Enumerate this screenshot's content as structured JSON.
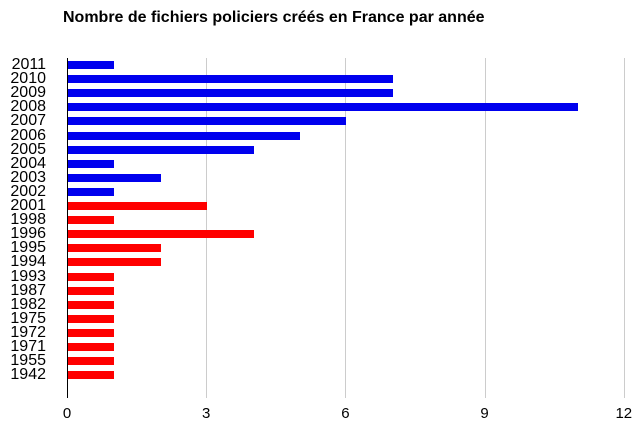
{
  "chart_data": {
    "type": "bar",
    "orientation": "horizontal",
    "title": "Nombre de fichiers policiers créés en France par année",
    "categories": [
      "2011",
      "2010",
      "2009",
      "2008",
      "2007",
      "2006",
      "2005",
      "2004",
      "2003",
      "2002",
      "2001",
      "1998",
      "1996",
      "1995",
      "1994",
      "1993",
      "1987",
      "1982",
      "1975",
      "1972",
      "1971",
      "1955",
      "1942"
    ],
    "values": [
      1,
      7,
      7,
      11,
      6,
      5,
      4,
      1,
      2,
      1,
      3,
      1,
      4,
      2,
      2,
      1,
      1,
      1,
      1,
      1,
      1,
      1,
      1
    ],
    "bar_colors": [
      "#0000ee",
      "#0000ee",
      "#0000ee",
      "#0000ee",
      "#0000ee",
      "#0000ee",
      "#0000ee",
      "#0000ee",
      "#0000ee",
      "#0000ee",
      "#ff0000",
      "#ff0000",
      "#ff0000",
      "#ff0000",
      "#ff0000",
      "#ff0000",
      "#ff0000",
      "#ff0000",
      "#ff0000",
      "#ff0000",
      "#ff0000",
      "#ff0000",
      "#ff0000"
    ],
    "xlabel": "",
    "ylabel": "",
    "xlim": [
      0,
      12
    ],
    "xticks": [
      "0",
      "3",
      "6",
      "9",
      "12"
    ],
    "grid": true,
    "legend": false,
    "colors": {
      "recent_bars": "#0000ee",
      "older_bars": "#ff0000",
      "gridline": "#cccccc",
      "axis_line": "#000000",
      "text": "#000000",
      "background": "#ffffff"
    }
  }
}
